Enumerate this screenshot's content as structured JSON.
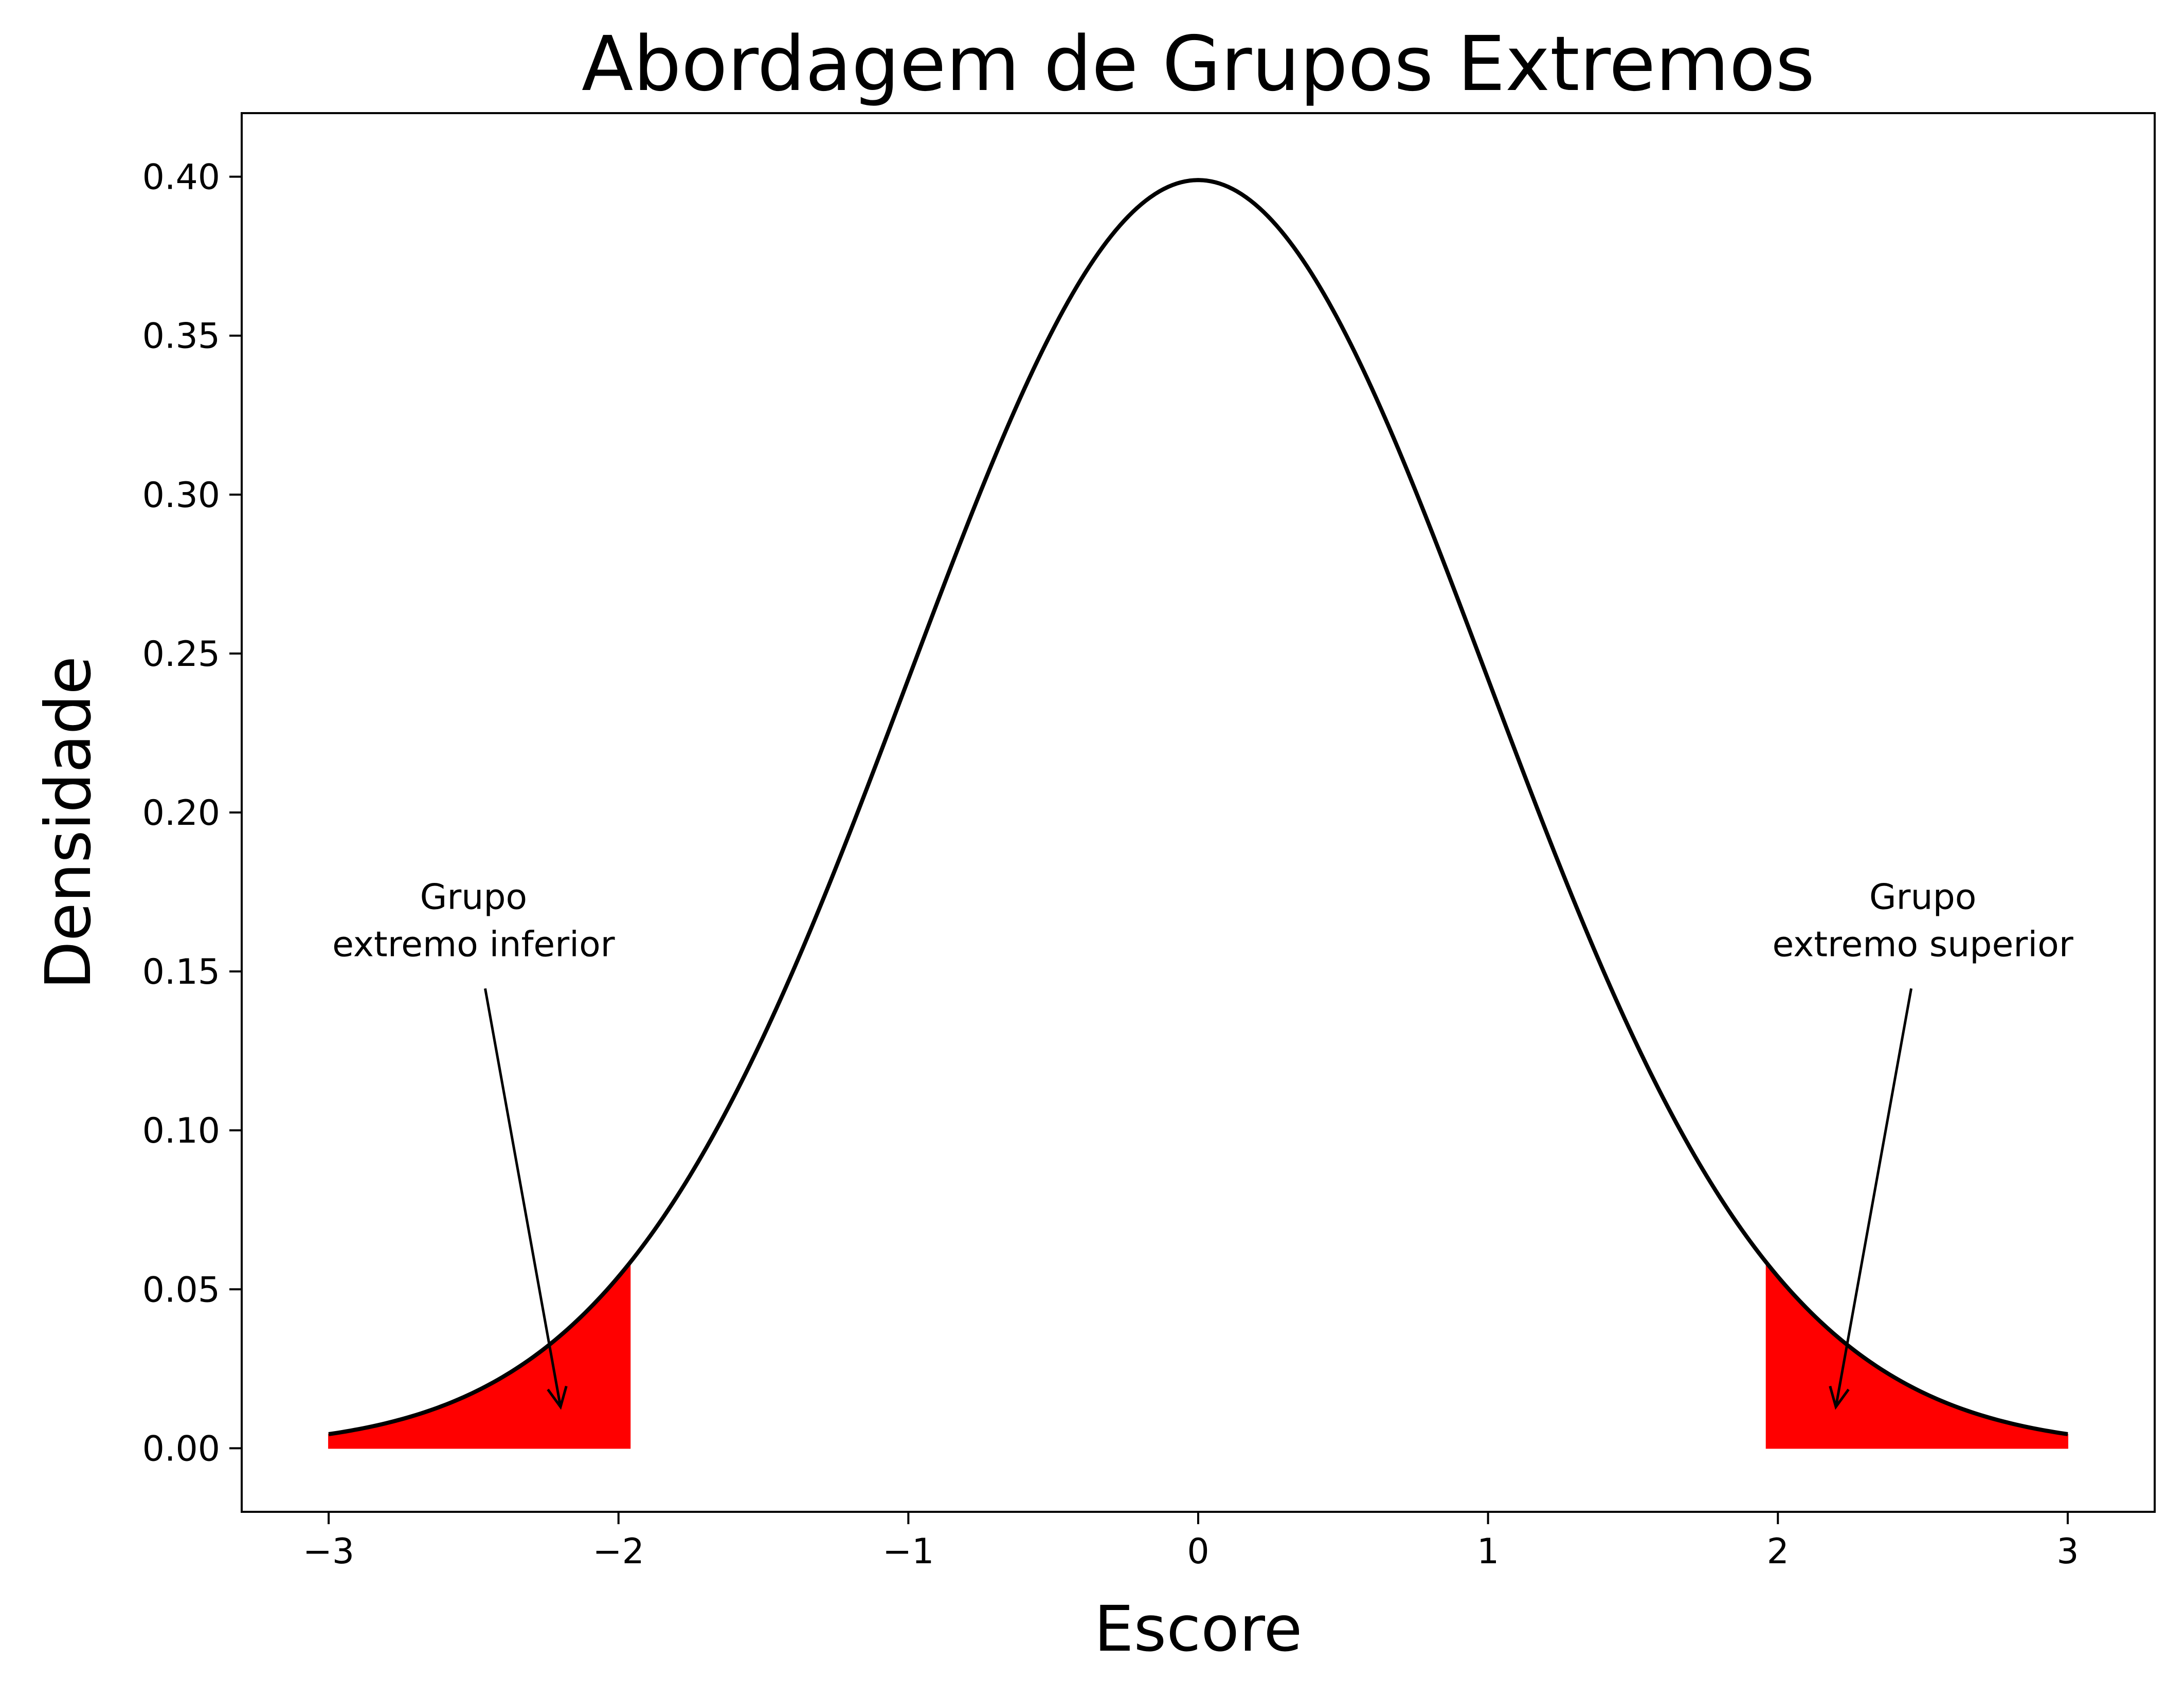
{
  "chart_data": {
    "type": "area",
    "title": "Abordagem de Grupos Extremos",
    "xlabel": "Escore",
    "ylabel": "Densidade",
    "xlim": [
      -3.3,
      3.3
    ],
    "ylim": [
      -0.02,
      0.42
    ],
    "xticks": [
      -3,
      -2,
      -1,
      0,
      1,
      2,
      3
    ],
    "xtick_labels": [
      "−3",
      "−2",
      "−1",
      "0",
      "1",
      "2",
      "3"
    ],
    "yticks": [
      0.0,
      0.05,
      0.1,
      0.15,
      0.2,
      0.25,
      0.3,
      0.35,
      0.4
    ],
    "ytick_labels": [
      "0.00",
      "0.05",
      "0.10",
      "0.15",
      "0.20",
      "0.25",
      "0.30",
      "0.35",
      "0.40"
    ],
    "grid": false,
    "curve": {
      "distribution": "standard normal",
      "x_range": [
        -3,
        3
      ],
      "peak": {
        "x": 0,
        "y": 0.399
      },
      "color": "#000000"
    },
    "shaded_regions": [
      {
        "x_range": [
          -3,
          -1.96
        ],
        "color": "#ff0000"
      },
      {
        "x_range": [
          1.96,
          3
        ],
        "color": "#ff0000"
      }
    ],
    "annotations": [
      {
        "lines": [
          "Grupo",
          "extremo inferior"
        ],
        "text_at": {
          "x": -2.5,
          "y": 0.16
        },
        "arrow_to": {
          "x": -2.2,
          "y": 0.013
        }
      },
      {
        "lines": [
          "Grupo",
          "extremo superior"
        ],
        "text_at": {
          "x": 2.5,
          "y": 0.16
        },
        "arrow_to": {
          "x": 2.2,
          "y": 0.013
        }
      }
    ]
  }
}
